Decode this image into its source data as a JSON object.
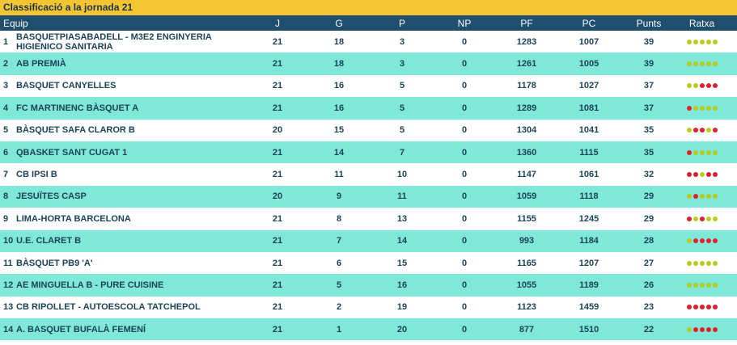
{
  "title": "Classificació a la jornada 21",
  "columns": [
    "Equip",
    "J",
    "G",
    "P",
    "NP",
    "PF",
    "PC",
    "Punts",
    "Ratxa"
  ],
  "rows": [
    {
      "pos": "1",
      "team": "BASQUETPIASABADELL - M3E2 ENGINYERIA HIGIENICO SANITARIA",
      "j": "21",
      "g": "18",
      "p": "3",
      "np": "0",
      "pf": "1283",
      "pc": "1007",
      "pts": "39",
      "streak": [
        "W",
        "W",
        "W",
        "W",
        "W"
      ]
    },
    {
      "pos": "2",
      "team": "AB PREMIÀ",
      "j": "21",
      "g": "18",
      "p": "3",
      "np": "0",
      "pf": "1261",
      "pc": "1005",
      "pts": "39",
      "streak": [
        "W",
        "W",
        "W",
        "W",
        "W"
      ]
    },
    {
      "pos": "3",
      "team": "BASQUET CANYELLES",
      "j": "21",
      "g": "16",
      "p": "5",
      "np": "0",
      "pf": "1178",
      "pc": "1027",
      "pts": "37",
      "streak": [
        "W",
        "W",
        "L",
        "L",
        "L"
      ]
    },
    {
      "pos": "4",
      "team": "FC MARTINENC BÀSQUET A",
      "j": "21",
      "g": "16",
      "p": "5",
      "np": "0",
      "pf": "1289",
      "pc": "1081",
      "pts": "37",
      "streak": [
        "L",
        "W",
        "W",
        "W",
        "W"
      ]
    },
    {
      "pos": "5",
      "team": "BÀSQUET SAFA CLAROR B",
      "j": "20",
      "g": "15",
      "p": "5",
      "np": "0",
      "pf": "1304",
      "pc": "1041",
      "pts": "35",
      "streak": [
        "W",
        "L",
        "L",
        "W",
        "L"
      ]
    },
    {
      "pos": "6",
      "team": "QBASKET SANT CUGAT 1",
      "j": "21",
      "g": "14",
      "p": "7",
      "np": "0",
      "pf": "1360",
      "pc": "1115",
      "pts": "35",
      "streak": [
        "L",
        "W",
        "W",
        "W",
        "W"
      ]
    },
    {
      "pos": "7",
      "team": "CB IPSI B",
      "j": "21",
      "g": "11",
      "p": "10",
      "np": "0",
      "pf": "1147",
      "pc": "1061",
      "pts": "32",
      "streak": [
        "L",
        "L",
        "W",
        "L",
        "L"
      ]
    },
    {
      "pos": "8",
      "team": "JESUÏTES CASP",
      "j": "20",
      "g": "9",
      "p": "11",
      "np": "0",
      "pf": "1059",
      "pc": "1118",
      "pts": "29",
      "streak": [
        "W",
        "L",
        "W",
        "W",
        "W"
      ]
    },
    {
      "pos": "9",
      "team": "LIMA-HORTA BARCELONA",
      "j": "21",
      "g": "8",
      "p": "13",
      "np": "0",
      "pf": "1155",
      "pc": "1245",
      "pts": "29",
      "streak": [
        "L",
        "W",
        "L",
        "W",
        "W"
      ]
    },
    {
      "pos": "10",
      "team": "U.E. CLARET B",
      "j": "21",
      "g": "7",
      "p": "14",
      "np": "0",
      "pf": "993",
      "pc": "1184",
      "pts": "28",
      "streak": [
        "W",
        "L",
        "L",
        "L",
        "L"
      ]
    },
    {
      "pos": "11",
      "team": "BÀSQUET PB9 'A'",
      "j": "21",
      "g": "6",
      "p": "15",
      "np": "0",
      "pf": "1165",
      "pc": "1207",
      "pts": "27",
      "streak": [
        "W",
        "W",
        "W",
        "W",
        "W"
      ]
    },
    {
      "pos": "12",
      "team": "AE MINGUELLA B - PURE CUISINE",
      "j": "21",
      "g": "5",
      "p": "16",
      "np": "0",
      "pf": "1055",
      "pc": "1189",
      "pts": "26",
      "streak": [
        "W",
        "W",
        "W",
        "W",
        "W"
      ]
    },
    {
      "pos": "13",
      "team": "CB RIPOLLET - AUTOESCOLA TATCHEPOL",
      "j": "21",
      "g": "2",
      "p": "19",
      "np": "0",
      "pf": "1123",
      "pc": "1459",
      "pts": "23",
      "streak": [
        "L",
        "L",
        "L",
        "L",
        "L"
      ]
    },
    {
      "pos": "14",
      "team": "A. BASQUET BUFALÀ FEMENÍ",
      "j": "21",
      "g": "1",
      "p": "20",
      "np": "0",
      "pf": "877",
      "pc": "1510",
      "pts": "22",
      "streak": [
        "W",
        "L",
        "L",
        "L",
        "L"
      ]
    }
  ],
  "colors": {
    "title_bg": "#f4c431",
    "header_bg": "#1f4e6e",
    "row_alt": "#7fe8d8",
    "win": "#b8cc1e",
    "loss": "#e11f2d"
  }
}
